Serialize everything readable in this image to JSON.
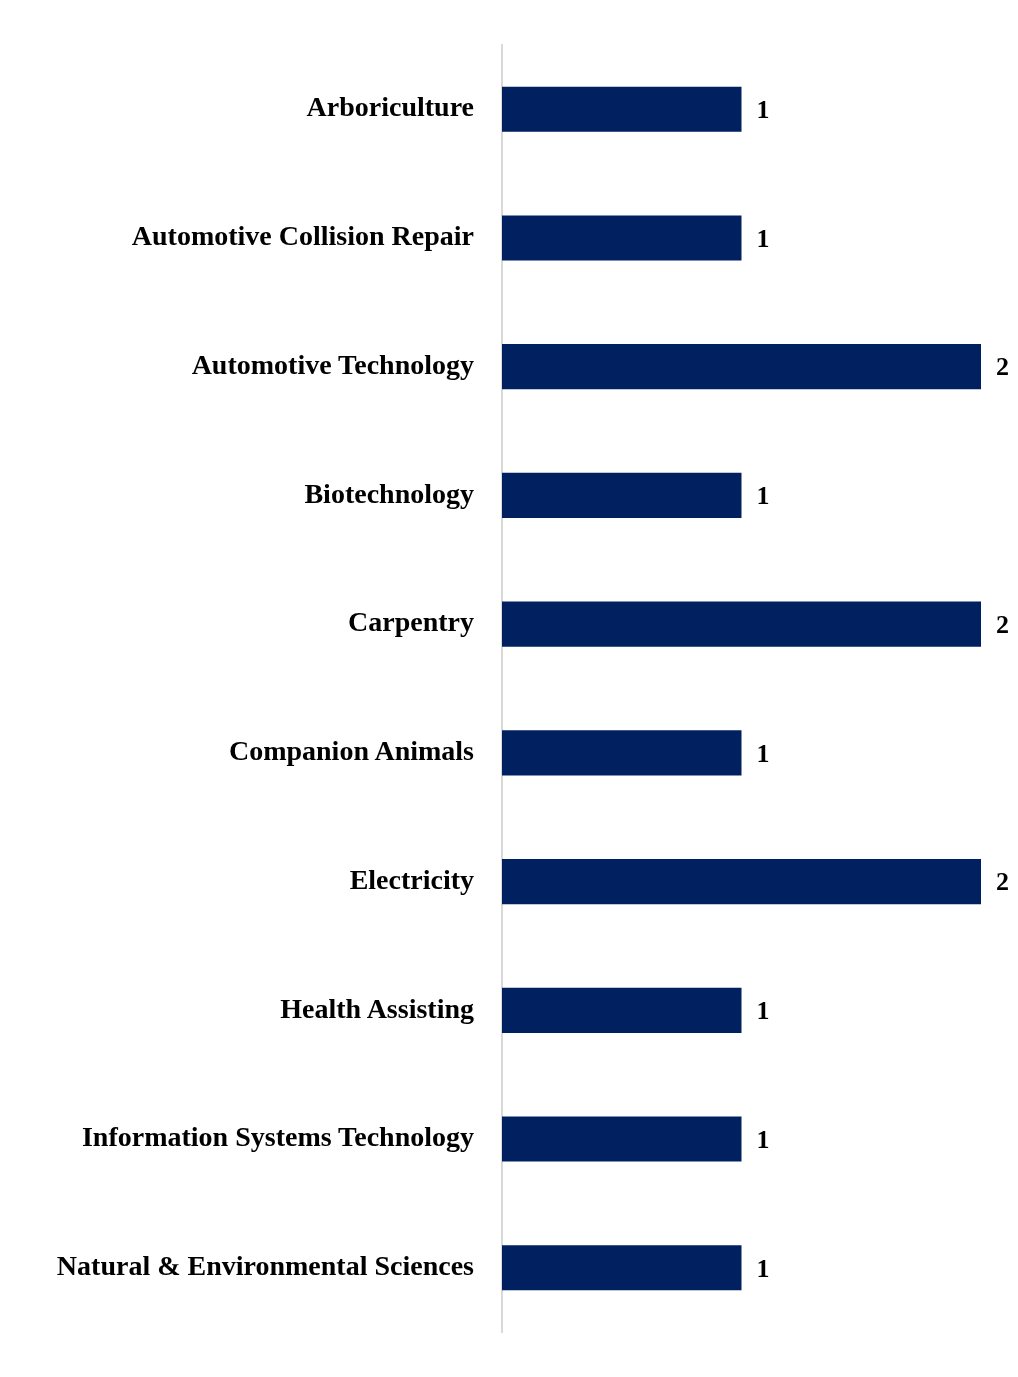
{
  "chart_data": {
    "type": "bar",
    "orientation": "horizontal",
    "categories": [
      "Arboriculture",
      "Automotive Collision Repair",
      "Automotive Technology",
      "Biotechnology",
      "Carpentry",
      "Companion Animals",
      "Electricity",
      "Health Assisting",
      "Information Systems Technology",
      "Natural & Environmental Sciences"
    ],
    "values": [
      1,
      1,
      2,
      1,
      2,
      1,
      2,
      1,
      1,
      1
    ],
    "color": "#002060",
    "data_labels": true
  }
}
